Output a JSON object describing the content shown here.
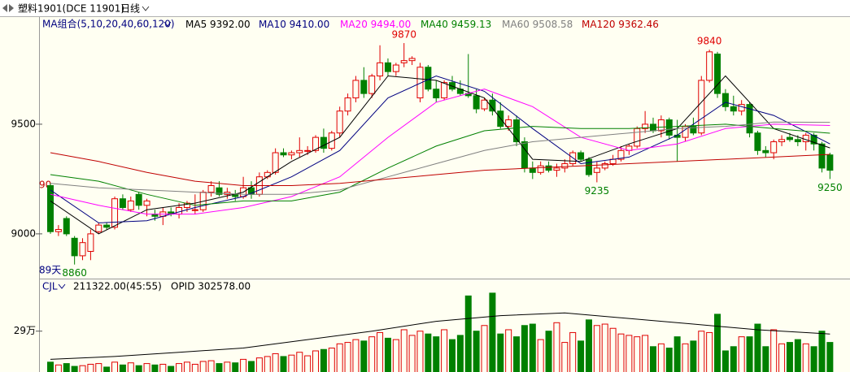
{
  "header": {
    "title": "塑料1901(DCE 11901)",
    "period": "日线"
  },
  "chart_data": [
    {
      "type": "candlestick",
      "legend_title": "MA组合(5,10,20,40,60,120)",
      "up_color": "#e00000",
      "down_color": "#008000",
      "open": [
        9220,
        9010,
        9070,
        8980,
        8900,
        8920,
        9010,
        9040,
        9030,
        9160,
        9110,
        9180,
        9130,
        9090,
        9080,
        9100,
        9090,
        9120,
        9110,
        9110,
        9190,
        9210,
        9180,
        9180,
        9170,
        9210,
        9180,
        9260,
        9280,
        9370,
        9360,
        9370,
        9380,
        9380,
        9440,
        9390,
        9460,
        9560,
        9620,
        9700,
        9640,
        9720,
        9780,
        9740,
        9780,
        9790,
        9620,
        9760,
        9660,
        9620,
        9690,
        9660,
        9640,
        9630,
        9570,
        9610,
        9560,
        9490,
        9520,
        9420,
        9300,
        9280,
        9310,
        9290,
        9300,
        9320,
        9370,
        9340,
        9280,
        9300,
        9320,
        9340,
        9380,
        9400,
        9480,
        9500,
        9470,
        9520,
        9450,
        9440,
        9490,
        9460,
        9700,
        9820,
        9640,
        9580,
        9560,
        9590,
        9460,
        9380,
        9370,
        9420,
        9440,
        9430,
        9420,
        9450,
        9410,
        9360
      ],
      "high": [
        9230,
        9040,
        9080,
        8990,
        8980,
        9020,
        9050,
        9050,
        9170,
        9180,
        9170,
        9190,
        9160,
        9110,
        9120,
        9120,
        9140,
        9150,
        9180,
        9200,
        9240,
        9240,
        9210,
        9200,
        9260,
        9240,
        9280,
        9290,
        9390,
        9390,
        9380,
        9440,
        9400,
        9450,
        9480,
        9470,
        9580,
        9640,
        9720,
        9760,
        9730,
        9860,
        9800,
        9780,
        9870,
        9810,
        9780,
        9770,
        9700,
        9700,
        9720,
        9700,
        9820,
        9660,
        9620,
        9640,
        9600,
        9540,
        9540,
        9440,
        9330,
        9330,
        9330,
        9320,
        9340,
        9380,
        9380,
        9350,
        9330,
        9330,
        9360,
        9400,
        9410,
        9490,
        9560,
        9530,
        9540,
        9530,
        9520,
        9500,
        9530,
        9720,
        9840,
        9830,
        9660,
        9630,
        9610,
        9600,
        9470,
        9400,
        9430,
        9450,
        9460,
        9450,
        9460,
        9460,
        9420,
        9370
      ],
      "low": [
        9000,
        8990,
        8990,
        8860,
        8880,
        8880,
        9000,
        9020,
        9020,
        9110,
        9100,
        9110,
        9080,
        9060,
        9040,
        9080,
        9070,
        9100,
        9090,
        9100,
        9170,
        9170,
        9160,
        9150,
        9160,
        9160,
        9170,
        9250,
        9270,
        9350,
        9340,
        9350,
        9360,
        9370,
        9370,
        9380,
        9440,
        9540,
        9600,
        9620,
        9620,
        9700,
        9720,
        9720,
        9760,
        9770,
        9600,
        9650,
        9600,
        9610,
        9650,
        9630,
        9620,
        9550,
        9560,
        9540,
        9480,
        9470,
        9400,
        9280,
        9250,
        9270,
        9280,
        9260,
        9280,
        9310,
        9330,
        9260,
        9235,
        9290,
        9310,
        9330,
        9360,
        9390,
        9460,
        9460,
        9440,
        9430,
        9330,
        9420,
        9450,
        9450,
        9690,
        9620,
        9560,
        9540,
        9540,
        9440,
        9360,
        9350,
        9340,
        9400,
        9420,
        9400,
        9380,
        9380,
        9280,
        9250
      ],
      "close": [
        9010,
        9020,
        9000,
        8900,
        8960,
        9000,
        9040,
        9030,
        9160,
        9120,
        9150,
        9130,
        9150,
        9080,
        9100,
        9090,
        9120,
        9140,
        9110,
        9190,
        9220,
        9180,
        9190,
        9170,
        9210,
        9180,
        9260,
        9280,
        9370,
        9360,
        9370,
        9380,
        9380,
        9440,
        9390,
        9460,
        9560,
        9620,
        9700,
        9640,
        9720,
        9780,
        9740,
        9770,
        9790,
        9800,
        9760,
        9660,
        9620,
        9690,
        9660,
        9640,
        9630,
        9570,
        9610,
        9560,
        9490,
        9520,
        9420,
        9300,
        9280,
        9310,
        9290,
        9300,
        9320,
        9370,
        9340,
        9270,
        9300,
        9320,
        9340,
        9380,
        9400,
        9480,
        9500,
        9470,
        9520,
        9450,
        9440,
        9490,
        9460,
        9700,
        9830,
        9640,
        9580,
        9560,
        9590,
        9460,
        9380,
        9370,
        9420,
        9430,
        9430,
        9420,
        9450,
        9410,
        9300,
        9290
      ],
      "ylim": [
        8807,
        9985
      ],
      "yticks": [
        9000,
        9500
      ],
      "ma_index": [
        0,
        6,
        12,
        18,
        24,
        30,
        36,
        42,
        48,
        54,
        60,
        66,
        72,
        78,
        84,
        90,
        97
      ],
      "series": [
        {
          "name": "MA5",
          "last_label": "9392.00",
          "color": "#000000",
          "values": [
            9150,
            9000,
            9110,
            9140,
            9190,
            9330,
            9440,
            9720,
            9700,
            9620,
            9340,
            9330,
            9410,
            9480,
            9720,
            9480,
            9392
          ]
        },
        {
          "name": "MA10",
          "last_label": "9410.00",
          "color": "#000080",
          "values": [
            9200,
            9050,
            9060,
            9120,
            9170,
            9260,
            9380,
            9620,
            9720,
            9650,
            9480,
            9320,
            9350,
            9450,
            9600,
            9540,
            9410
          ]
        },
        {
          "name": "MA20",
          "last_label": "9494.00",
          "color": "#ff00ff",
          "values": [
            9180,
            9130,
            9090,
            9090,
            9120,
            9170,
            9260,
            9440,
            9600,
            9660,
            9580,
            9440,
            9380,
            9410,
            9480,
            9500,
            9494
          ]
        },
        {
          "name": "MA40",
          "last_label": "9459.13",
          "color": "#008000",
          "values": [
            9270,
            9240,
            9180,
            9130,
            9150,
            9150,
            9190,
            9300,
            9400,
            9470,
            9490,
            9480,
            9480,
            9490,
            9500,
            9480,
            9459.13
          ]
        },
        {
          "name": "MA60",
          "last_label": "9508.58",
          "color": "#808080",
          "values": [
            9230,
            9210,
            9200,
            9190,
            9180,
            9180,
            9200,
            9260,
            9320,
            9380,
            9420,
            9440,
            9460,
            9480,
            9490,
            9510,
            9508.58
          ]
        },
        {
          "name": "MA120",
          "last_label": "9362.46",
          "color": "#c00000",
          "values": [
            9370,
            9330,
            9280,
            9240,
            9220,
            9220,
            9230,
            9250,
            9270,
            9290,
            9300,
            9310,
            9320,
            9330,
            9340,
            9350,
            9362.46
          ]
        }
      ],
      "annotations": [
        "90",
        "89天"
      ]
    },
    {
      "type": "bar",
      "title": "CJL",
      "subtitle": "211322.00(45:55)",
      "note": "OPID 302578.00",
      "values": [
        70000,
        50000,
        60000,
        40000,
        45000,
        55000,
        60000,
        35000,
        70000,
        50000,
        65000,
        45000,
        60000,
        50000,
        55000,
        40000,
        60000,
        70000,
        55000,
        75000,
        80000,
        60000,
        70000,
        65000,
        90000,
        75000,
        100000,
        110000,
        130000,
        110000,
        120000,
        140000,
        115000,
        150000,
        160000,
        170000,
        200000,
        210000,
        230000,
        220000,
        250000,
        280000,
        240000,
        230000,
        300000,
        260000,
        290000,
        270000,
        250000,
        300000,
        230000,
        260000,
        540000,
        290000,
        330000,
        560000,
        270000,
        300000,
        250000,
        330000,
        340000,
        230000,
        290000,
        350000,
        210000,
        280000,
        220000,
        370000,
        330000,
        340000,
        310000,
        270000,
        260000,
        250000,
        260000,
        180000,
        200000,
        170000,
        250000,
        200000,
        220000,
        290000,
        280000,
        410000,
        150000,
        180000,
        250000,
        250000,
        340000,
        180000,
        300000,
        200000,
        210000,
        230000,
        200000,
        180000,
        290000,
        210000
      ],
      "ylim": [
        0,
        640000
      ],
      "yticks": [
        {
          "value": 290000,
          "label": "29万"
        }
      ],
      "series": [
        {
          "color": "#000000",
          "x": [
            0,
            8,
            16,
            24,
            32,
            40,
            48,
            56,
            64,
            72,
            80,
            88,
            97
          ],
          "values": [
            90000,
            110000,
            140000,
            170000,
            230000,
            290000,
            360000,
            400000,
            420000,
            380000,
            340000,
            300000,
            270000
          ]
        }
      ]
    }
  ]
}
